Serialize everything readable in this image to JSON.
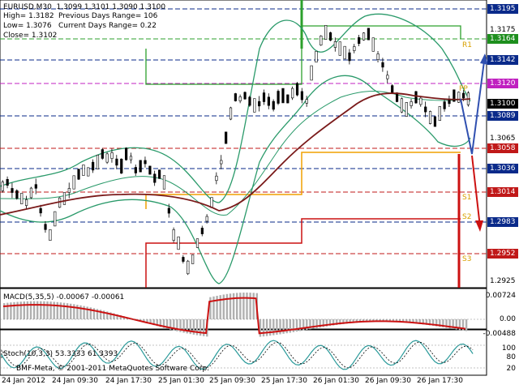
{
  "chart_header": {
    "symbol_line": "EURUSD,M30  1.3099 1.3101 1.3090 1.3100",
    "high": "High= 1.3182",
    "low": "Low= 1.3076",
    "close": "Close= 1.3102",
    "prev_range": "Previous Days Range= 106",
    "curr_range": "Current Days Range= 0.22"
  },
  "price_labels": [
    {
      "text": "1.3195",
      "color": "#0a2a8a",
      "fg": "#ffffff"
    },
    {
      "text": "1.3175",
      "color": "",
      "fg": "#000000"
    },
    {
      "text": "1.3164",
      "color": "#1e8f1e",
      "fg": "#ffffff"
    },
    {
      "text": "1.3142",
      "color": "#0a2a8a",
      "fg": "#ffffff"
    },
    {
      "text": "1.3120",
      "color": "#c020c0",
      "fg": "#ffffff"
    },
    {
      "text": "1.3100",
      "color": "#000000",
      "fg": "#ffffff"
    },
    {
      "text": "1.3089",
      "color": "#0a2a8a",
      "fg": "#ffffff"
    },
    {
      "text": "1.3065",
      "color": "",
      "fg": "#000000"
    },
    {
      "text": "1.3058",
      "color": "#c01818",
      "fg": "#ffffff"
    },
    {
      "text": "1.3036",
      "color": "#0a2a8a",
      "fg": "#ffffff"
    },
    {
      "text": "1.3014",
      "color": "#c01818",
      "fg": "#ffffff"
    },
    {
      "text": "1.2983",
      "color": "#0a2a8a",
      "fg": "#ffffff"
    },
    {
      "text": "1.2952",
      "color": "#c01818",
      "fg": "#ffffff"
    },
    {
      "text": "1.2925",
      "color": "",
      "fg": "#000000"
    }
  ],
  "level_tags": [
    "R1",
    "PP",
    "S1",
    "S2",
    "S3"
  ],
  "time_labels": [
    "24 Jan 2012",
    "24 Jan 09:30",
    "24 Jan 17:30",
    "25 Jan 01:30",
    "25 Jan 09:30",
    "25 Jan 17:30",
    "26 Jan 01:30",
    "26 Jan 09:30",
    "26 Jan 17:30"
  ],
  "macd": {
    "title": "MACD(5,35,5) -0.00067 -0.00061",
    "scale": [
      "0.00724",
      "0.00",
      "-0.00488"
    ]
  },
  "stoch": {
    "title": "Stoch(10,3,3) 53.3333 61.3393",
    "scale": [
      "100",
      "80",
      "20",
      "0"
    ]
  },
  "watermark": "BMF-Meta, © 2001-2011 MetaQuotes Software Corp.",
  "colors": {
    "bollinger": "#2a9a6a",
    "ma": "#7a1a1a",
    "orange": "#f0a000",
    "red": "#cc1111",
    "green": "#2ca02c",
    "blue_arrow": "#3050b0",
    "macd_line": "#cc1111",
    "hist": "#b0b0b0"
  }
}
